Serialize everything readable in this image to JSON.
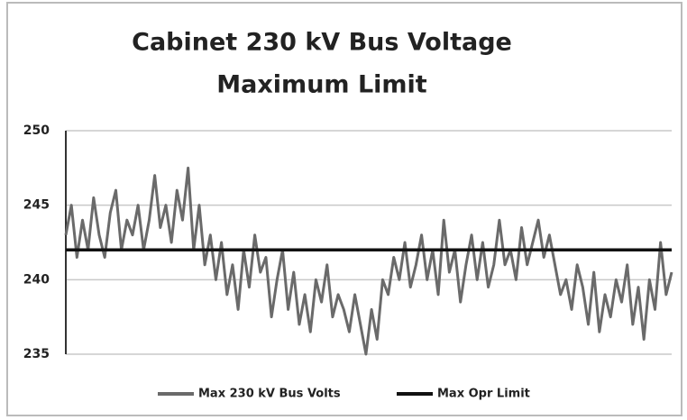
{
  "chart_data": {
    "type": "line",
    "title": [
      "Cabinet 230 kV Bus Voltage",
      "Maximum Limit"
    ],
    "ylim": [
      235,
      250
    ],
    "yticks": [
      235,
      240,
      245,
      250
    ],
    "grid": true,
    "legend": "bottom",
    "series": [
      {
        "name": "Max 230 kV Bus Volts",
        "color": "#6a6a6a",
        "values": [
          243,
          245,
          241.5,
          244,
          242,
          245.5,
          243,
          241.5,
          244.5,
          246,
          242,
          244,
          243,
          245,
          242,
          244,
          247,
          243.5,
          245,
          242.5,
          246,
          244,
          247.5,
          242,
          245,
          241,
          243,
          240,
          242.5,
          239,
          241,
          238,
          242,
          239.5,
          243,
          240.5,
          241.5,
          237.5,
          240,
          242,
          238,
          240.5,
          237,
          239,
          236.5,
          240,
          238.5,
          241,
          237.5,
          239,
          238,
          236.5,
          239,
          237,
          235,
          238,
          236,
          240,
          239,
          241.5,
          240,
          242.5,
          239.5,
          241,
          243,
          240,
          242,
          239,
          244,
          240.5,
          242,
          238.5,
          241,
          243,
          240,
          242.5,
          239.5,
          241,
          244,
          241,
          242,
          240,
          243.5,
          241,
          242.5,
          244,
          241.5,
          243,
          241,
          239,
          240,
          238,
          241,
          239.5,
          237,
          240.5,
          236.5,
          239,
          237.5,
          240,
          238.5,
          241,
          237,
          239.5,
          236,
          240,
          238,
          242.5,
          239,
          240.5
        ]
      },
      {
        "name": "Max Opr Limit",
        "color": "#111111",
        "values": [
          242,
          242,
          242,
          242,
          242,
          242,
          242,
          242,
          242,
          242,
          242,
          242,
          242,
          242,
          242,
          242,
          242,
          242,
          242,
          242,
          242,
          242,
          242,
          242,
          242,
          242,
          242,
          242,
          242,
          242,
          242,
          242,
          242,
          242,
          242,
          242,
          242,
          242,
          242,
          242,
          242,
          242,
          242,
          242,
          242,
          242,
          242,
          242,
          242,
          242,
          242,
          242,
          242,
          242,
          242,
          242,
          242,
          242,
          242,
          242,
          242,
          242,
          242,
          242,
          242,
          242,
          242,
          242,
          242,
          242,
          242,
          242,
          242,
          242,
          242,
          242,
          242,
          242,
          242,
          242,
          242,
          242,
          242,
          242,
          242,
          242,
          242,
          242,
          242,
          242,
          242,
          242,
          242,
          242,
          242,
          242,
          242,
          242,
          242,
          242,
          242,
          242,
          242,
          242,
          242,
          242,
          242,
          242,
          242,
          242
        ]
      }
    ]
  }
}
